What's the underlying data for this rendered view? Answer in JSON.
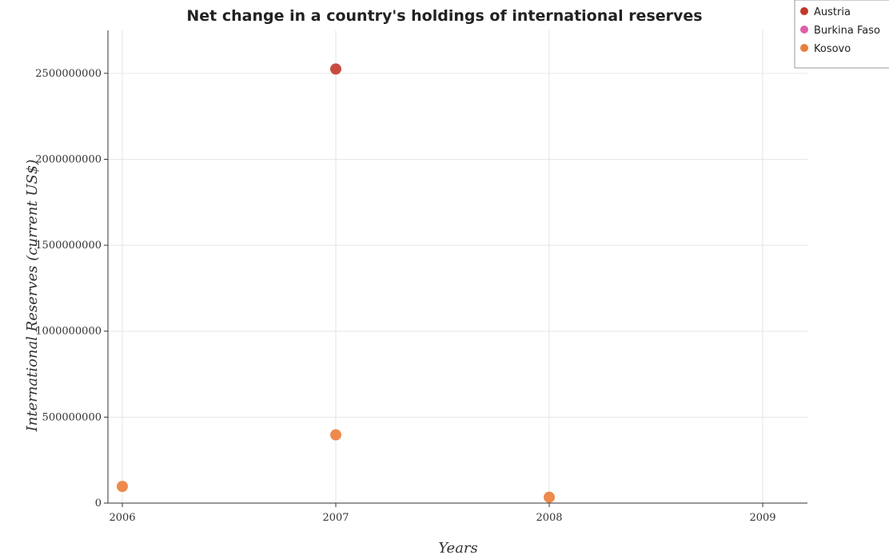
{
  "chart_data": {
    "type": "scatter",
    "title": "Net change in a country's holdings of international reserves",
    "xlabel": "Years",
    "ylabel": "International Reserves (current US$)",
    "categories": [
      "2006",
      "2007",
      "2008",
      "2009"
    ],
    "ylim": [
      0,
      2750000000
    ],
    "yticks": [
      0,
      500000000,
      1000000000,
      1500000000,
      2000000000,
      2500000000
    ],
    "ytick_labels": [
      "0",
      "500000000",
      "1000000000",
      "1500000000",
      "2000000000",
      "2500000000"
    ],
    "grid": true,
    "legend_position": "top-right",
    "series": [
      {
        "name": "Austria",
        "color": "#c0392b",
        "values": [
          null,
          2525000000,
          null,
          null
        ]
      },
      {
        "name": "Burkina Faso",
        "color": "#e05fa8",
        "values": [
          null,
          null,
          null,
          null
        ]
      },
      {
        "name": "Kosovo",
        "color": "#ec7d3a",
        "values": [
          97000000,
          397000000,
          34000000,
          null
        ]
      }
    ]
  }
}
